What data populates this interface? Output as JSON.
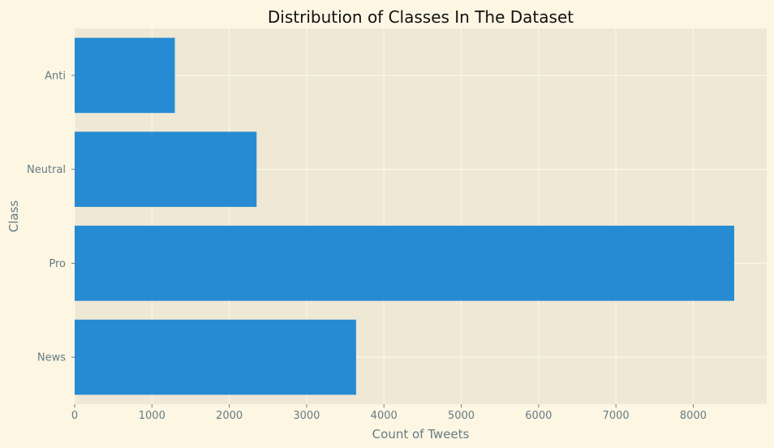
{
  "chart_data": {
    "type": "bar",
    "orientation": "horizontal",
    "title": "Distribution of Classes In The Dataset",
    "xlabel": "Count of Tweets",
    "ylabel": "Class",
    "categories": [
      "News",
      "Pro",
      "Neutral",
      "Anti"
    ],
    "values": [
      3640,
      8530,
      2353,
      1296
    ],
    "xlim": [
      0,
      8950
    ],
    "xticks": [
      0,
      1000,
      2000,
      3000,
      4000,
      5000,
      6000,
      7000,
      8000
    ],
    "grid": true,
    "legend": "none",
    "colors": {
      "bar": "#268bd2",
      "plot_background": "#eee8d5",
      "figure_background": "#fdf6e3",
      "grid": "#fbf7ec",
      "tick_text": "#657b83",
      "title_text": "#111111"
    }
  }
}
